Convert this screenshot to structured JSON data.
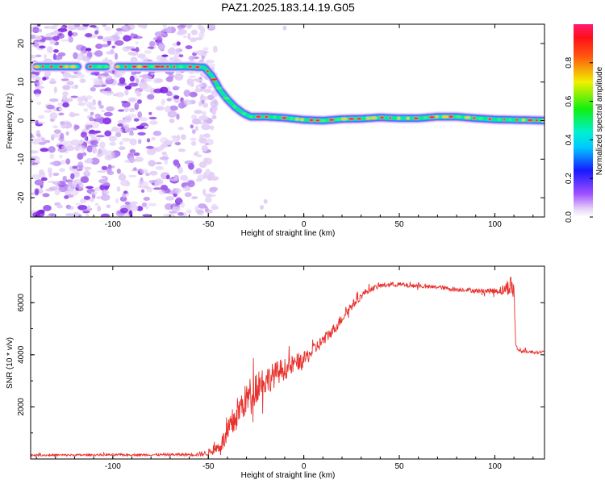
{
  "title": "PAZ1.2025.183.14.19.G05",
  "colors": {
    "snr_line": "#e8322e",
    "track_core": "#ff1a1a",
    "track_edge": "#1a1aff",
    "noise": "#9a4de0"
  },
  "chart_data": [
    {
      "type": "heatmap",
      "title": "",
      "xlabel": "Height of straight line (km)",
      "ylabel": "Frequency (Hz)",
      "xlim": [
        -143,
        126
      ],
      "ylim": [
        -25,
        25
      ],
      "xticks": [
        "-100",
        "-50",
        "0",
        "50",
        "100"
      ],
      "xtick_values": [
        -100,
        -50,
        0,
        50,
        100
      ],
      "yticks": [
        "-20",
        "-10",
        "0",
        "10",
        "20"
      ],
      "ytick_values": [
        -20,
        -10,
        0,
        10,
        20
      ],
      "colorbar": {
        "label": "Normalized spectral amplitude",
        "range": [
          0,
          1
        ],
        "ticks": [
          "0.0",
          "0.2",
          "0.4",
          "0.6",
          "0.8"
        ],
        "tick_values": [
          0.0,
          0.2,
          0.4,
          0.6,
          0.8
        ]
      },
      "track": {
        "x": [
          -140,
          -100,
          -60,
          -52,
          -48,
          -44,
          -40,
          -36,
          -32,
          -28,
          -20,
          -10,
          0,
          10,
          20,
          30,
          40,
          50,
          60,
          70,
          80,
          90,
          100,
          110,
          120,
          126
        ],
        "y": [
          14,
          14,
          14,
          13.8,
          11.5,
          8,
          5.5,
          3.5,
          2,
          1,
          1,
          0.7,
          0.2,
          0,
          0.4,
          0.5,
          0.8,
          0.6,
          0.6,
          1,
          1,
          0.6,
          0.3,
          0.2,
          0.1,
          0
        ],
        "gap_x": [
          -118,
          -98
        ]
      },
      "noise_region_x": [
        -143,
        -50
      ]
    },
    {
      "type": "line",
      "title": "",
      "xlabel": "Height of straight line (km)",
      "ylabel": "SNR (10 * v/v)",
      "xlim": [
        -143,
        126
      ],
      "ylim": [
        0,
        7400
      ],
      "xticks": [
        "-100",
        "-50",
        "0",
        "50",
        "100"
      ],
      "xtick_values": [
        -100,
        -50,
        0,
        50,
        100
      ],
      "yticks": [
        "2000",
        "4000",
        "6000"
      ],
      "ytick_values": [
        2000,
        4000,
        6000
      ],
      "series": [
        {
          "x": [
            -143,
            -120,
            -100,
            -80,
            -60,
            -52,
            -48,
            -44,
            -40,
            -36,
            -32,
            -28,
            -24,
            -20,
            -16,
            -12,
            -8,
            -4,
            0,
            4,
            8,
            12,
            16,
            20,
            24,
            28,
            32,
            36,
            40,
            45,
            50,
            55,
            60,
            65,
            70,
            75,
            80,
            85,
            90,
            95,
            100,
            105,
            108,
            110,
            111,
            113,
            120,
            126
          ],
          "y": [
            150,
            150,
            160,
            160,
            170,
            200,
            300,
            500,
            900,
            1600,
            2100,
            2500,
            2900,
            3000,
            3200,
            3400,
            3500,
            3700,
            3800,
            4100,
            4400,
            4700,
            5000,
            5400,
            5800,
            6100,
            6400,
            6550,
            6650,
            6700,
            6700,
            6650,
            6650,
            6600,
            6600,
            6550,
            6500,
            6500,
            6450,
            6450,
            6450,
            6500,
            6700,
            6500,
            4300,
            4150,
            4100,
            4100
          ],
          "noise_amp": [
            40,
            40,
            40,
            40,
            60,
            100,
            150,
            250,
            500,
            650,
            600,
            650,
            700,
            550,
            500,
            450,
            380,
            350,
            300,
            280,
            250,
            230,
            220,
            200,
            180,
            150,
            130,
            100,
            100,
            90,
            90,
            80,
            80,
            80,
            80,
            80,
            80,
            80,
            90,
            100,
            120,
            220,
            400,
            400,
            100,
            80,
            60,
            60
          ]
        }
      ]
    }
  ]
}
